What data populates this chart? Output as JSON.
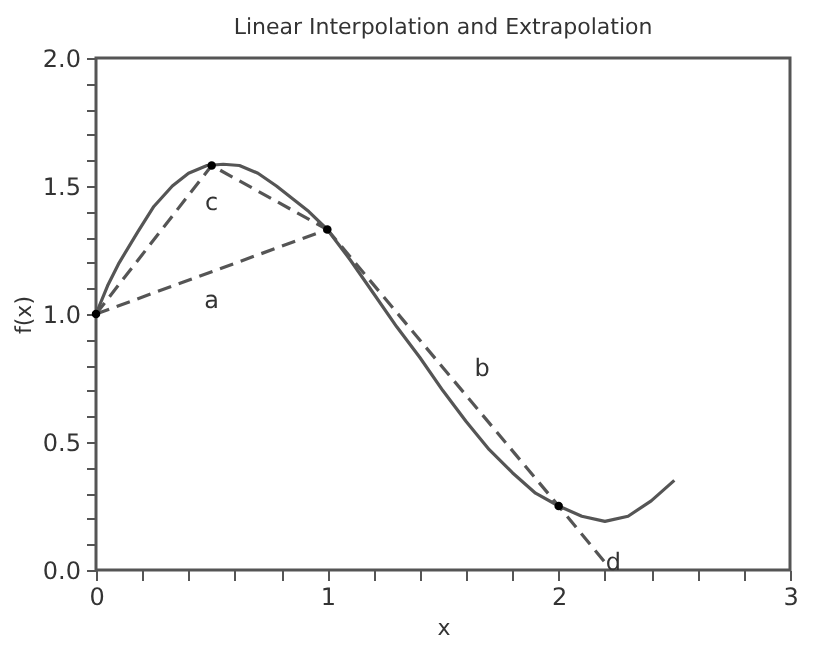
{
  "chart_data": {
    "type": "line",
    "title": "Linear Interpolation and Extrapolation",
    "xlabel": "x",
    "ylabel": "f(x)",
    "xlim": [
      0,
      3
    ],
    "ylim": [
      0,
      2
    ],
    "xticks": [
      0,
      {
        "value": 0.2,
        "label": null
      },
      {
        "value": 0.4,
        "label": null
      },
      {
        "value": 0.6,
        "label": null
      },
      {
        "value": 0.8,
        "label": null
      },
      1,
      {
        "value": 1.2,
        "label": null
      },
      {
        "value": 1.4,
        "label": null
      },
      {
        "value": 1.6,
        "label": null
      },
      {
        "value": 1.8,
        "label": null
      },
      2,
      {
        "value": 2.2,
        "label": null
      },
      {
        "value": 2.4,
        "label": null
      },
      {
        "value": 2.6,
        "label": null
      },
      {
        "value": 2.8,
        "label": null
      },
      3
    ],
    "yticks": [
      {
        "value": 0,
        "label": "0.0"
      },
      {
        "value": 0.1,
        "label": null
      },
      {
        "value": 0.2,
        "label": null
      },
      {
        "value": 0.3,
        "label": null
      },
      {
        "value": 0.4,
        "label": null
      },
      0.5,
      {
        "value": 0.6,
        "label": null
      },
      {
        "value": 0.7,
        "label": null
      },
      {
        "value": 0.8,
        "label": null
      },
      {
        "value": 0.9,
        "label": null
      },
      {
        "value": 1,
        "label": "1.0"
      },
      {
        "value": 1.1,
        "label": null
      },
      {
        "value": 1.2,
        "label": null
      },
      {
        "value": 1.3,
        "label": null
      },
      {
        "value": 1.4,
        "label": null
      },
      1.5,
      {
        "value": 1.6,
        "label": null
      },
      {
        "value": 1.7,
        "label": null
      },
      {
        "value": 1.8,
        "label": null
      },
      {
        "value": 1.9,
        "label": null
      },
      {
        "value": 2,
        "label": "2.0"
      }
    ],
    "grid": false,
    "series": [
      {
        "color": "#555555",
        "line_style": "solid",
        "marker": "none",
        "x": [
          0,
          0.05,
          0.1,
          0.18,
          0.25,
          0.33,
          0.4,
          0.48,
          0.55,
          0.62,
          0.7,
          0.78,
          0.85,
          0.92,
          1,
          1.1,
          1.2,
          1.3,
          1.4,
          1.5,
          1.6,
          1.7,
          1.8,
          1.9,
          2,
          2.1,
          2.2,
          2.3,
          2.4,
          2.5
        ],
        "values": [
          1,
          1.11,
          1.2,
          1.32,
          1.42,
          1.5,
          1.55,
          1.58,
          1.585,
          1.58,
          1.55,
          1.5,
          1.45,
          1.4,
          1.33,
          1.21,
          1.08,
          0.95,
          0.83,
          0.7,
          0.58,
          0.47,
          0.38,
          0.3,
          0.25,
          0.21,
          0.19,
          0.21,
          0.27,
          0.35
        ]
      },
      {
        "color": "#555555",
        "line_style": "dashed",
        "marker": "none",
        "x": [
          0,
          1
        ],
        "values": [
          1,
          1.33
        ]
      },
      {
        "color": "#555555",
        "line_style": "dashed",
        "marker": "none",
        "x": [
          0,
          0.5,
          1
        ],
        "values": [
          1,
          1.58,
          1.33
        ]
      },
      {
        "color": "#555555",
        "line_style": "dashed",
        "marker": "none",
        "x": [
          1,
          2,
          2.2
        ],
        "values": [
          1.33,
          0.25,
          0.03
        ]
      },
      {
        "type": "scatter",
        "color": "#000000",
        "marker": "circle",
        "x": [
          0,
          0.5,
          1,
          2
        ],
        "values": [
          1,
          1.58,
          1.33,
          0.25
        ]
      }
    ],
    "annotations": [
      {
        "text": "a",
        "x": 0.5,
        "y": 1.165
      },
      {
        "text": "c",
        "x": 0.5,
        "y": 1.58
      },
      {
        "text": "b",
        "x": 1.6,
        "y": 0.68
      },
      {
        "text": "d",
        "x": 2.15,
        "y": 0.08
      }
    ]
  }
}
